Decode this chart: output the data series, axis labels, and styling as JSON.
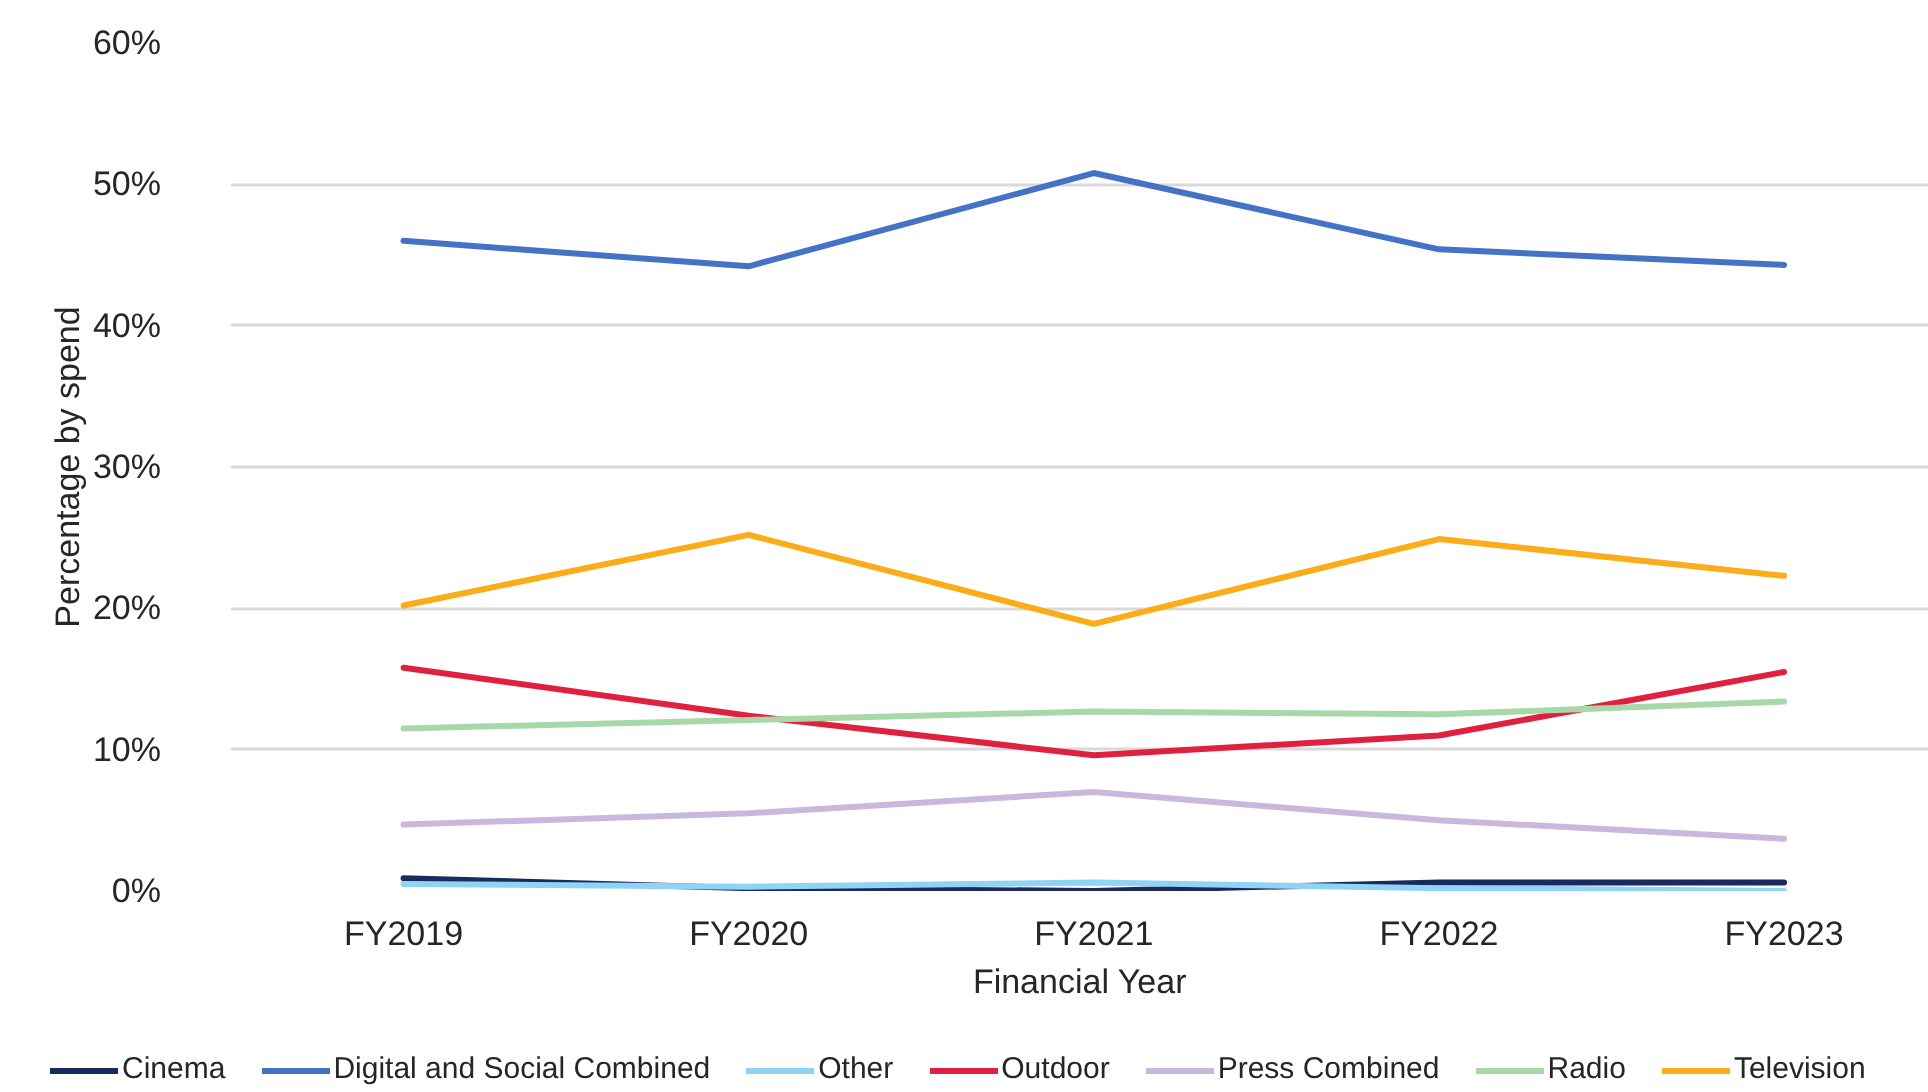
{
  "chart_data": {
    "type": "line",
    "xlabel": "Financial Year",
    "ylabel": "Percentage by spend",
    "categories": [
      "FY2019",
      "FY2020",
      "FY2021",
      "FY2022",
      "FY2023"
    ],
    "series": [
      {
        "name": "Cinema",
        "color": "#1b2a5e",
        "values": [
          0.9,
          0.2,
          0.0,
          0.6,
          0.6
        ]
      },
      {
        "name": "Digital and Social Combined",
        "color": "#4472c4",
        "values": [
          46.0,
          44.2,
          50.8,
          45.4,
          44.3
        ]
      },
      {
        "name": "Other",
        "color": "#8fd3f5",
        "values": [
          0.5,
          0.3,
          0.6,
          0.2,
          0.0
        ]
      },
      {
        "name": "Outdoor",
        "color": "#e0203f",
        "values": [
          15.8,
          12.4,
          9.6,
          11.0,
          15.5
        ]
      },
      {
        "name": "Press Combined",
        "color": "#c9b8dc",
        "values": [
          4.7,
          5.5,
          7.0,
          5.0,
          3.7
        ]
      },
      {
        "name": "Radio",
        "color": "#a8d8a8",
        "values": [
          11.5,
          12.1,
          12.7,
          12.5,
          13.4
        ]
      },
      {
        "name": "Television",
        "color": "#fbac19",
        "values": [
          20.2,
          25.2,
          18.9,
          24.9,
          22.3
        ]
      }
    ],
    "ylim": [
      0,
      60
    ],
    "yticks": [
      {
        "value": 0,
        "label": "0%"
      },
      {
        "value": 10,
        "label": "10%"
      },
      {
        "value": 20,
        "label": "20%"
      },
      {
        "value": 30,
        "label": "30%"
      },
      {
        "value": 40,
        "label": "40%"
      },
      {
        "value": 50,
        "label": "50%"
      },
      {
        "value": 60,
        "label": "60%"
      }
    ],
    "grid": "y",
    "legend": "bottom"
  }
}
